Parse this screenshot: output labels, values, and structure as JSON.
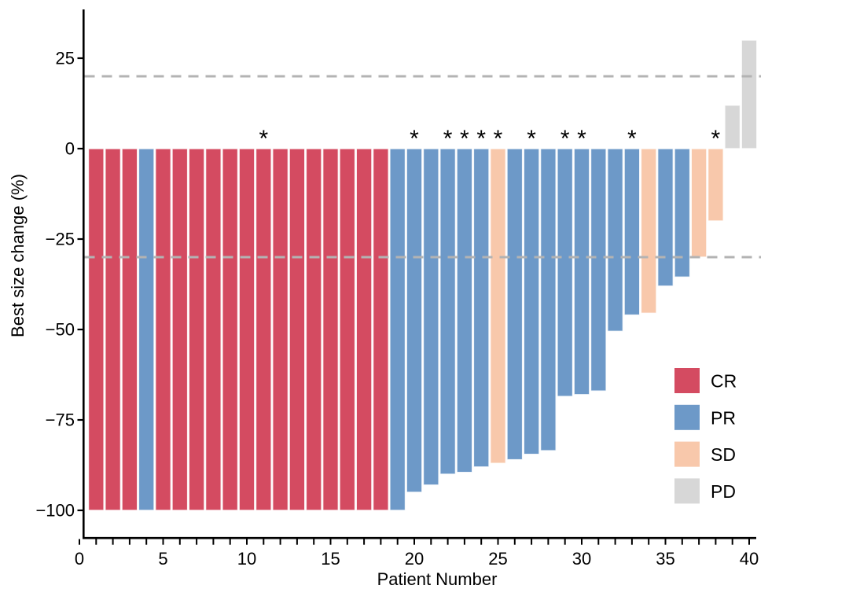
{
  "chart_data": {
    "type": "bar",
    "subtype": "waterfall-best-response",
    "title": "",
    "xlabel": "Patient Number",
    "ylabel": "Best size change (%)",
    "xlim": [
      0,
      41
    ],
    "ylim": [
      -107,
      38
    ],
    "x_axis_range": [
      0,
      40
    ],
    "x_minor_tick_step": 1,
    "x_ticks": [
      {
        "value": 0,
        "label": "0"
      },
      {
        "value": 5,
        "label": "5"
      },
      {
        "value": 10,
        "label": "10"
      },
      {
        "value": 15,
        "label": "15"
      },
      {
        "value": 20,
        "label": "20"
      },
      {
        "value": 25,
        "label": "25"
      },
      {
        "value": 30,
        "label": "30"
      },
      {
        "value": 35,
        "label": "35"
      },
      {
        "value": 40,
        "label": "40"
      }
    ],
    "y_ticks": [
      {
        "value": 25,
        "label": "25"
      },
      {
        "value": 0,
        "label": "0"
      },
      {
        "value": -25,
        "label": "−25"
      },
      {
        "value": -50,
        "label": "−50"
      },
      {
        "value": -75,
        "label": "−75"
      },
      {
        "value": -100,
        "label": "−100"
      }
    ],
    "reference_lines": {
      "values": [
        20,
        -30
      ],
      "style": "dashed",
      "color": "#b3b3b3"
    },
    "grid": "off",
    "legend_position": "inside-right",
    "legend": [
      {
        "label": "CR",
        "color": "#d44b61"
      },
      {
        "label": "PR",
        "color": "#6d99c8"
      },
      {
        "label": "SD",
        "color": "#f8c8ab"
      },
      {
        "label": "PD",
        "color": "#d7d7d7"
      }
    ],
    "marker_glyph": "*",
    "patients": [
      {
        "n": 1,
        "response": "CR",
        "value": -100,
        "star": false
      },
      {
        "n": 2,
        "response": "CR",
        "value": -100,
        "star": false
      },
      {
        "n": 3,
        "response": "CR",
        "value": -100,
        "star": false
      },
      {
        "n": 4,
        "response": "PR",
        "value": -100,
        "star": false
      },
      {
        "n": 5,
        "response": "CR",
        "value": -100,
        "star": false
      },
      {
        "n": 6,
        "response": "CR",
        "value": -100,
        "star": false
      },
      {
        "n": 7,
        "response": "CR",
        "value": -100,
        "star": false
      },
      {
        "n": 8,
        "response": "CR",
        "value": -100,
        "star": false
      },
      {
        "n": 9,
        "response": "CR",
        "value": -100,
        "star": false
      },
      {
        "n": 10,
        "response": "CR",
        "value": -100,
        "star": false
      },
      {
        "n": 11,
        "response": "CR",
        "value": -100,
        "star": true
      },
      {
        "n": 12,
        "response": "CR",
        "value": -100,
        "star": false
      },
      {
        "n": 13,
        "response": "CR",
        "value": -100,
        "star": false
      },
      {
        "n": 14,
        "response": "CR",
        "value": -100,
        "star": false
      },
      {
        "n": 15,
        "response": "CR",
        "value": -100,
        "star": false
      },
      {
        "n": 16,
        "response": "CR",
        "value": -100,
        "star": false
      },
      {
        "n": 17,
        "response": "CR",
        "value": -100,
        "star": false
      },
      {
        "n": 18,
        "response": "CR",
        "value": -100,
        "star": false
      },
      {
        "n": 19,
        "response": "PR",
        "value": -100,
        "star": false
      },
      {
        "n": 20,
        "response": "PR",
        "value": -95,
        "star": true
      },
      {
        "n": 21,
        "response": "PR",
        "value": -93,
        "star": false
      },
      {
        "n": 22,
        "response": "PR",
        "value": -90,
        "star": true
      },
      {
        "n": 23,
        "response": "PR",
        "value": -89.5,
        "star": true
      },
      {
        "n": 24,
        "response": "PR",
        "value": -88,
        "star": true
      },
      {
        "n": 25,
        "response": "SD",
        "value": -87,
        "star": true
      },
      {
        "n": 26,
        "response": "PR",
        "value": -86,
        "star": false
      },
      {
        "n": 27,
        "response": "PR",
        "value": -84.5,
        "star": true
      },
      {
        "n": 28,
        "response": "PR",
        "value": -83.5,
        "star": false
      },
      {
        "n": 29,
        "response": "PR",
        "value": -68.5,
        "star": true
      },
      {
        "n": 30,
        "response": "PR",
        "value": -68,
        "star": true
      },
      {
        "n": 31,
        "response": "PR",
        "value": -67,
        "star": false
      },
      {
        "n": 32,
        "response": "PR",
        "value": -50.5,
        "star": false
      },
      {
        "n": 33,
        "response": "PR",
        "value": -46,
        "star": true
      },
      {
        "n": 34,
        "response": "SD",
        "value": -45.5,
        "star": false
      },
      {
        "n": 35,
        "response": "PR",
        "value": -38,
        "star": false
      },
      {
        "n": 36,
        "response": "PR",
        "value": -35.5,
        "star": false
      },
      {
        "n": 37,
        "response": "SD",
        "value": -30,
        "star": false
      },
      {
        "n": 38,
        "response": "SD",
        "value": -20,
        "star": true
      },
      {
        "n": 39,
        "response": "PD",
        "value": 12,
        "star": false
      },
      {
        "n": 40,
        "response": "PD",
        "value": 30,
        "star": false
      }
    ]
  }
}
